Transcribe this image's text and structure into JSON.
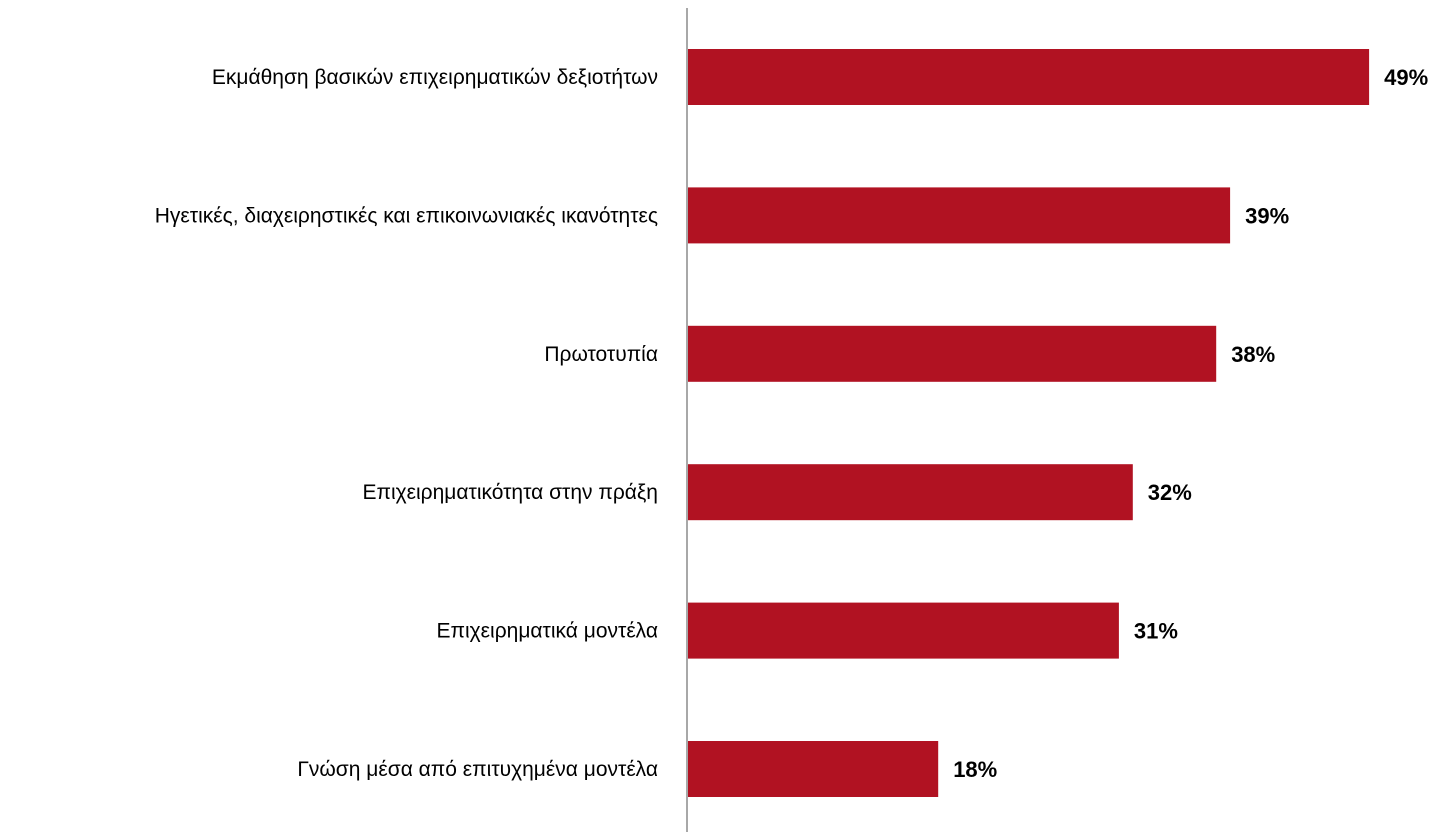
{
  "chart_data": {
    "type": "bar",
    "orientation": "horizontal",
    "categories": [
      "Εκμάθηση βασικών επιχειρηματικών δεξιοτήτων",
      "Ηγετικές, διαχειρηστικές και επικοινωνιακές ικανότητες",
      "Πρωτοτυπία",
      "Επιχειρηματικότητα στην πράξη",
      "Επιχειρηματικά μοντέλα",
      "Γνώση μέσα από επιτυχημένα μοντέλα"
    ],
    "values": [
      49,
      39,
      38,
      32,
      31,
      18
    ],
    "value_labels": [
      "49%",
      "39%",
      "38%",
      "32%",
      "31%",
      "18%"
    ],
    "unit": "%",
    "xlim": [
      0,
      50
    ],
    "grid": false,
    "legend": "none",
    "bar_color": "#B11222",
    "axis_color": "#8C8C8C"
  }
}
